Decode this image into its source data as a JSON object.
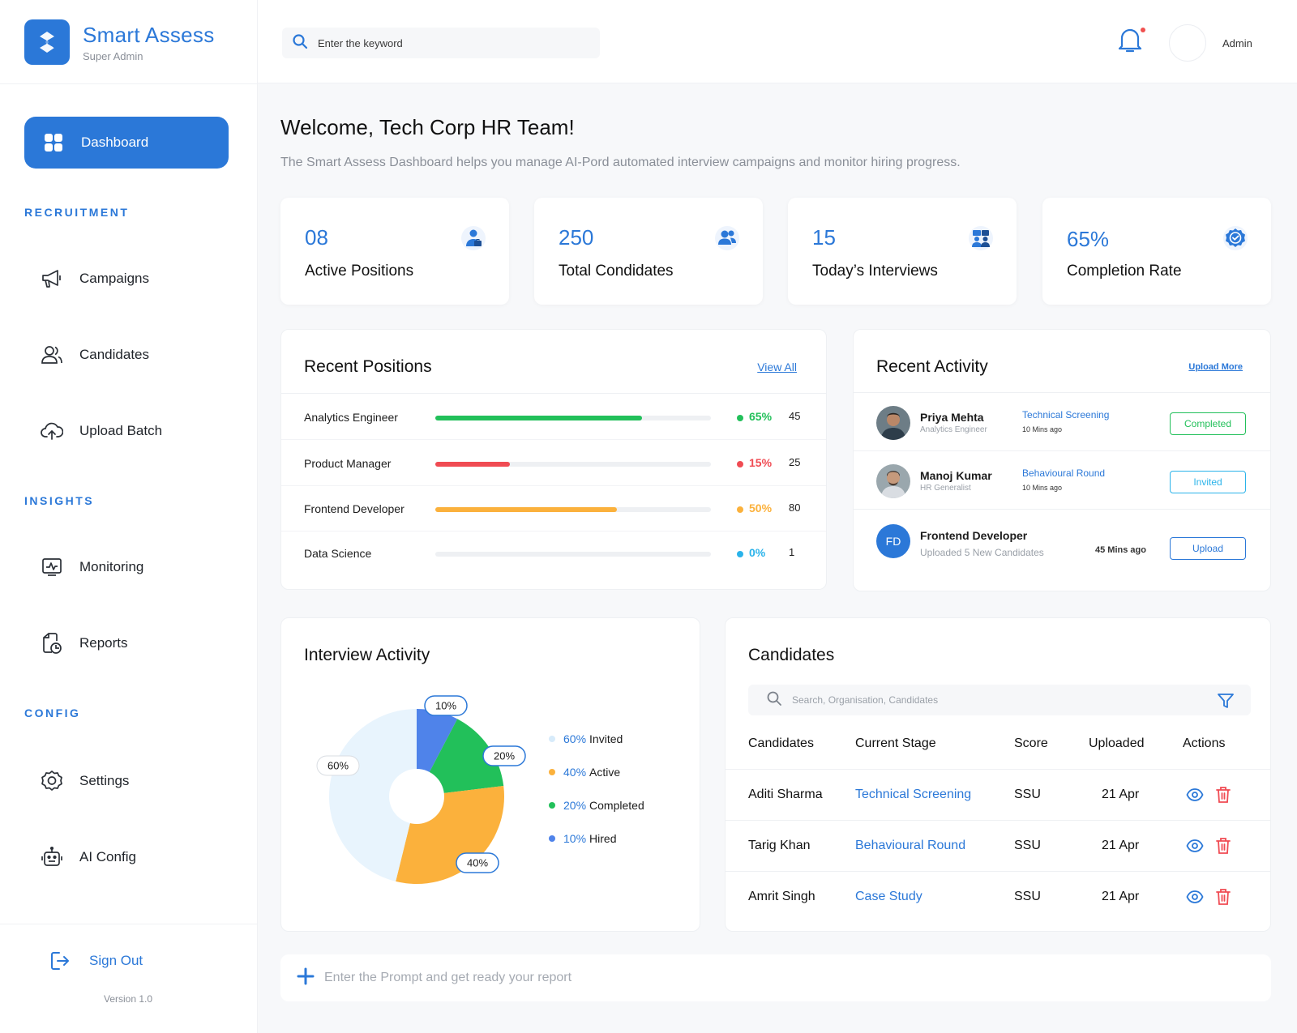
{
  "brand": {
    "name": "Smart Assess",
    "role": "Super Admin"
  },
  "nav": {
    "dashboard": "Dashboard",
    "sections": {
      "recruitment": "RECRUITMENT",
      "insights": "INSIGHTS",
      "config": "CONFIG"
    },
    "campaigns": "Campaigns",
    "candidates": "Candidates",
    "upload_batch": "Upload Batch",
    "monitoring": "Monitoring",
    "reports": "Reports",
    "settings": "Settings",
    "ai_config": "AI Config",
    "sign_out": "Sign Out",
    "version": "Version 1.0"
  },
  "topbar": {
    "search_placeholder": "Enter the keyword",
    "user": "Admin"
  },
  "welcome": {
    "title": "Welcome, Tech Corp HR Team!",
    "subtitle": "The Smart Assess Dashboard helps you manage AI-Pord automated interview campaigns and monitor hiring progress."
  },
  "stats": [
    {
      "value": "08",
      "label": "Active Positions",
      "icon": "manager-icon"
    },
    {
      "value": "250",
      "label": "Total Condidates",
      "icon": "users-icon"
    },
    {
      "value": "15",
      "label": "Today’s Interviews",
      "icon": "interview-icon"
    },
    {
      "value": "65%",
      "label": "Completion Rate",
      "icon": "badge-check-icon"
    }
  ],
  "recent_positions": {
    "title": "Recent Positions",
    "link": "View All",
    "rows": [
      {
        "name": "Analytics Engineer",
        "pct": "65%",
        "progress": 0.75,
        "count": "45",
        "color": "#22c05a"
      },
      {
        "name": "Product Manager",
        "pct": "15%",
        "progress": 0.27,
        "count": "25",
        "color": "#f04b53"
      },
      {
        "name": "Frontend Developer",
        "pct": "50%",
        "progress": 0.66,
        "count": "80",
        "color": "#fbb13c"
      },
      {
        "name": "Data Science",
        "pct": "0%",
        "progress": 0,
        "count": "1",
        "color": "#2ab3ea"
      }
    ]
  },
  "recent_activity": {
    "title": "Recent Activity",
    "link": "Upload More",
    "rows": [
      {
        "name": "Priya Mehta",
        "role": "Analytics Engineer",
        "stage": "Technical Screening",
        "time": "10 Mins ago",
        "action": "Completed",
        "action_color": "#22c05a"
      },
      {
        "name": "Manoj Kumar",
        "role": "HR Generalist",
        "stage": "Behavioural Round",
        "time": "10 Mins ago",
        "action": "Invited",
        "action_color": "#2ab3ea"
      },
      {
        "initials": "FD",
        "name": "Frontend Developer",
        "role": "Uploaded 5 New Candidates",
        "time": "45 Mins ago",
        "action": "Upload",
        "action_color": "#2b78d8"
      }
    ]
  },
  "interview_activity": {
    "title": "Interview Activity",
    "callouts": [
      "10%",
      "20%",
      "40%",
      "60%"
    ]
  },
  "chart_data": {
    "type": "pie",
    "title": "Interview Activity",
    "slices": [
      {
        "label": "Hired",
        "value": 10,
        "color": "#4f83ea"
      },
      {
        "label": "Completed",
        "value": 20,
        "color": "#22c05a"
      },
      {
        "label": "Active",
        "value": 40,
        "color": "#fbb13c"
      },
      {
        "label": "Invited",
        "value": 60,
        "color": "#e8f4fd"
      }
    ],
    "legend": [
      {
        "pct": "60%",
        "label": "Invited",
        "color": "#e8f4fd"
      },
      {
        "pct": "40%",
        "label": "Active",
        "color": "#fbb13c"
      },
      {
        "pct": "20%",
        "label": "Completed",
        "color": "#22c05a"
      },
      {
        "pct": "10%",
        "label": "Hired",
        "color": "#4f83ea"
      }
    ],
    "legend_position": "right"
  },
  "candidates": {
    "title": "Candidates",
    "search_placeholder": "Search, Organisation, Candidates",
    "columns": [
      "Candidates",
      "Current Stage",
      "Score",
      "Uploaded",
      "Actions"
    ],
    "rows": [
      {
        "name": "Aditi Sharma",
        "stage": "Technical Screening",
        "score": "SSU",
        "uploaded": "21 Apr"
      },
      {
        "name": "Tarig Khan",
        "stage": "Behavioural Round",
        "score": "SSU",
        "uploaded": "21 Apr"
      },
      {
        "name": "Amrit Singh",
        "stage": "Case Study",
        "score": "SSU",
        "uploaded": "21 Apr"
      }
    ]
  },
  "prompt": {
    "placeholder": "Enter the Prompt and get ready your report"
  },
  "colors": {
    "accent": "#2b78d8",
    "danger": "#f04b53",
    "success": "#22c05a"
  }
}
